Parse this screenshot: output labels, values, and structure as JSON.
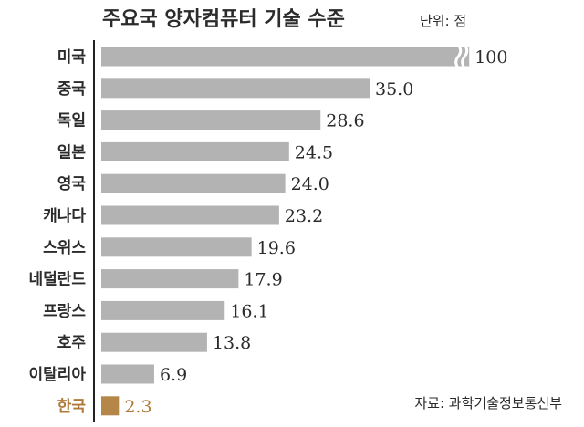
{
  "chart_data": {
    "type": "bar",
    "orientation": "horizontal",
    "title": "주요국 양자컴퓨터 기술 수준",
    "unit_label": "단위: 점",
    "categories": [
      "미국",
      "중국",
      "독일",
      "일본",
      "영국",
      "캐나다",
      "스위스",
      "네덜란드",
      "프랑스",
      "호주",
      "이탈리아",
      "한국"
    ],
    "values": [
      100,
      35.0,
      28.6,
      24.5,
      24.0,
      23.2,
      19.6,
      17.9,
      16.1,
      13.8,
      6.9,
      2.3
    ],
    "value_labels": [
      "100",
      "35.0",
      "28.6",
      "24.5",
      "24.0",
      "23.2",
      "19.6",
      "17.9",
      "16.1",
      "13.8",
      "6.9",
      "2.3"
    ],
    "axis_break": {
      "category": "미국",
      "display_as": 48
    },
    "highlight": "한국",
    "colors": {
      "bar": "#b3b3b3",
      "highlight": "#b48748",
      "text": "#2b2b2b",
      "highlight_text": "#b07a3a",
      "axis": "#222222"
    },
    "source": "자료: 과학기술정보통신부"
  }
}
